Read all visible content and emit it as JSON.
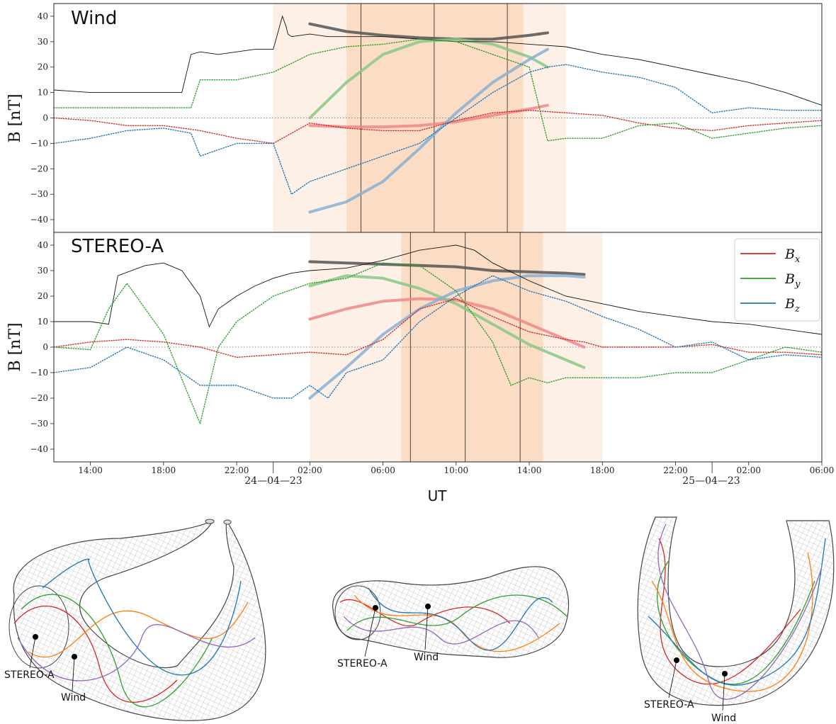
{
  "chart_data": [
    {
      "type": "line",
      "title": "Wind",
      "ylabel": "B [nT]",
      "ylim": [
        -45,
        45
      ],
      "yticks": [
        40,
        30,
        20,
        10,
        0,
        -10,
        -20,
        -30,
        -40
      ],
      "grid": false,
      "x_unit": "hours since 24-04-23 00:00 UT",
      "xlim": [
        -12,
        30
      ],
      "shaded_regions": [
        {
          "from": "24-04-23 00:00",
          "to": "24-04-23 04:00",
          "x": [
            0,
            4
          ],
          "shade": "light"
        },
        {
          "from": "24-04-23 04:00",
          "to": "24-04-23 13:40",
          "x": [
            4,
            13.67
          ],
          "shade": "dark"
        },
        {
          "from": "24-04-23 13:40",
          "to": "24-04-23 16:00",
          "x": [
            13.67,
            16
          ],
          "shade": "light"
        }
      ],
      "vertical_lines": [
        4.8,
        8.8,
        12.8
      ],
      "series": [
        {
          "name": "|B|",
          "color": "#111111",
          "x": [
            -12,
            -10,
            -8,
            -6,
            -5,
            -4.5,
            -4,
            -3,
            -2,
            -1,
            0,
            0.5,
            0.7,
            0.8,
            1,
            2,
            3,
            4,
            6,
            8,
            10,
            12,
            14,
            16,
            18,
            20,
            22,
            24,
            26,
            28,
            30
          ],
          "y": [
            11,
            10,
            10,
            10,
            10,
            25,
            26,
            25,
            26,
            27,
            27,
            40,
            36,
            33,
            32,
            33,
            32,
            32,
            32,
            31,
            30,
            30,
            29,
            28,
            25,
            23,
            20,
            17,
            14,
            10,
            5
          ]
        },
        {
          "name": "B_x",
          "color": "#d62728",
          "x": [
            -12,
            -10,
            -8,
            -6,
            -4,
            -2,
            0,
            2,
            4,
            6,
            8,
            10,
            12,
            14,
            16,
            18,
            20,
            22,
            24,
            26,
            28,
            30
          ],
          "y": [
            0,
            -1,
            -3,
            -3,
            -5,
            -8,
            -10,
            -2,
            -4,
            -5,
            -5,
            -1,
            2,
            3,
            2,
            1,
            -2,
            -4,
            -5,
            -3,
            -2,
            -1
          ]
        },
        {
          "name": "B_y",
          "color": "#2ca02c",
          "x": [
            -12,
            -10,
            -8,
            -6,
            -4.5,
            -4,
            -2,
            0,
            2,
            4,
            6,
            8,
            10,
            12,
            14,
            15,
            16,
            18,
            20,
            22,
            24,
            26,
            28,
            30
          ],
          "y": [
            4,
            4,
            4,
            4,
            4,
            15,
            15,
            18,
            25,
            28,
            29,
            31,
            30,
            25,
            20,
            -9,
            -8,
            -8,
            -3,
            -2,
            -8,
            -6,
            -4,
            -3
          ]
        },
        {
          "name": "B_z",
          "color": "#1f77b4",
          "x": [
            -12,
            -10,
            -8,
            -6,
            -4.5,
            -4,
            -2,
            0,
            1,
            2,
            4,
            6,
            8,
            10,
            12,
            14,
            15,
            16,
            18,
            20,
            22,
            24,
            26,
            28,
            30
          ],
          "y": [
            -10,
            -8,
            -5,
            -4,
            -6,
            -15,
            -10,
            -10,
            -30,
            -25,
            -20,
            -15,
            -10,
            0,
            10,
            18,
            20,
            21,
            18,
            16,
            12,
            2,
            4,
            3,
            3
          ]
        }
      ],
      "model_fits": [
        {
          "name": "|B| fit",
          "color": "#555555",
          "x": [
            2,
            4,
            6,
            8,
            10,
            12,
            14,
            15
          ],
          "y": [
            37,
            34,
            32.5,
            31.5,
            31,
            31,
            32.5,
            33.5
          ]
        },
        {
          "name": "B_x fit",
          "color": "#ee8888",
          "x": [
            2,
            4,
            6,
            8,
            10,
            12,
            14,
            15
          ],
          "y": [
            -3,
            -3.5,
            -3.5,
            -3,
            -1.5,
            1,
            3.5,
            5
          ]
        },
        {
          "name": "B_y fit",
          "color": "#88c888",
          "x": [
            2,
            4,
            6,
            8,
            10,
            12,
            14,
            15
          ],
          "y": [
            0,
            14,
            25,
            30,
            31,
            29,
            24,
            20
          ]
        },
        {
          "name": "B_z fit",
          "color": "#88b0d4",
          "x": [
            2,
            4,
            6,
            8,
            10,
            12,
            14,
            15
          ],
          "y": [
            -37,
            -33,
            -25,
            -12,
            2,
            14,
            23,
            27
          ]
        }
      ]
    },
    {
      "type": "line",
      "title": "STEREO-A",
      "ylabel": "B [nT]",
      "xlabel": "UT",
      "ylim": [
        -45,
        45
      ],
      "yticks": [
        40,
        30,
        20,
        10,
        0,
        -10,
        -20,
        -30,
        -40
      ],
      "grid": false,
      "x_unit": "hours since 24-04-23 00:00 UT",
      "xlim": [
        -12,
        30
      ],
      "xticks": [
        "14:00",
        "18:00",
        "22:00",
        "02:00",
        "06:00",
        "10:00",
        "14:00",
        "18:00",
        "22:00",
        "02:00",
        "06:00"
      ],
      "date_labels": [
        "24—04—23",
        "25—04—23"
      ],
      "legend": {
        "position": "top-right",
        "entries": [
          "B_x",
          "B_y",
          "B_z"
        ]
      },
      "shaded_regions": [
        {
          "from": "24-04-23 02:00",
          "to": "24-04-23 07:00",
          "x": [
            2,
            7
          ],
          "shade": "light"
        },
        {
          "from": "24-04-23 07:00",
          "to": "24-04-23 14:45",
          "x": [
            7,
            14.75
          ],
          "shade": "dark"
        },
        {
          "from": "24-04-23 14:45",
          "to": "24-04-23 18:00",
          "x": [
            14.75,
            18
          ],
          "shade": "light"
        }
      ],
      "vertical_lines": [
        7.5,
        10.5,
        13.5
      ],
      "series": [
        {
          "name": "|B|",
          "color": "#111111",
          "x": [
            -12,
            -10,
            -9,
            -8.5,
            -7,
            -6,
            -5,
            -4,
            -3.5,
            -3,
            -2,
            -1,
            0,
            1,
            2,
            4,
            6,
            8,
            10,
            11,
            12,
            14,
            16,
            18,
            20,
            22,
            24,
            26,
            28,
            30
          ],
          "y": [
            10,
            10,
            9,
            28,
            32,
            33,
            30,
            20,
            8,
            15,
            20,
            24,
            27,
            29,
            30,
            31,
            34,
            38,
            40,
            38,
            33,
            26,
            20,
            17,
            14,
            12,
            10,
            9,
            7,
            5
          ]
        },
        {
          "name": "B_x",
          "color": "#d62728",
          "x": [
            -12,
            -10,
            -8,
            -6,
            -4,
            -2,
            0,
            2,
            4,
            6,
            8,
            10,
            12,
            14,
            16,
            17,
            18,
            20,
            22,
            24,
            26,
            28,
            30
          ],
          "y": [
            0,
            2,
            3,
            2,
            0,
            -4,
            -3,
            -2,
            -3,
            3,
            15,
            19,
            12,
            6,
            3,
            2,
            0,
            0,
            0,
            1,
            -2,
            -2,
            -3
          ]
        },
        {
          "name": "B_y",
          "color": "#2ca02c",
          "x": [
            -12,
            -10,
            -9,
            -8,
            -6,
            -4,
            -3,
            -2,
            0,
            2,
            4,
            6,
            8,
            10,
            12,
            13,
            14,
            15,
            16,
            18,
            20,
            22,
            24,
            26,
            28,
            30
          ],
          "y": [
            0,
            -1,
            15,
            25,
            5,
            -30,
            0,
            10,
            20,
            25,
            27,
            33,
            32,
            22,
            2,
            -15,
            -12,
            -14,
            -12,
            -12,
            -12,
            -10,
            -10,
            -5,
            0,
            -2
          ]
        },
        {
          "name": "B_z",
          "color": "#1f77b4",
          "x": [
            -12,
            -10,
            -8,
            -6,
            -4,
            -2,
            0,
            1,
            2,
            3,
            4,
            6,
            8,
            10,
            12,
            14,
            16,
            18,
            20,
            22,
            24,
            26,
            28,
            30
          ],
          "y": [
            -10,
            -8,
            0,
            -5,
            -15,
            -15,
            -20,
            -20,
            -15,
            -20,
            -10,
            -5,
            10,
            20,
            28,
            22,
            18,
            12,
            7,
            0,
            2,
            -5,
            -3,
            -4
          ]
        }
      ],
      "model_fits": [
        {
          "name": "|B| fit",
          "color": "#555555",
          "x": [
            2,
            4,
            6,
            8,
            10,
            12,
            14,
            16,
            17
          ],
          "y": [
            33.5,
            33,
            32.5,
            32,
            31.5,
            30,
            29.5,
            29,
            28.5
          ]
        },
        {
          "name": "B_x fit",
          "color": "#ee8888",
          "x": [
            2,
            4,
            6,
            8,
            10,
            12,
            14,
            16,
            17
          ],
          "y": [
            11,
            15,
            18,
            19,
            18.5,
            15,
            9,
            3,
            0
          ]
        },
        {
          "name": "B_y fit",
          "color": "#88c888",
          "x": [
            2,
            4,
            6,
            8,
            10,
            12,
            14,
            16,
            17
          ],
          "y": [
            24,
            28,
            27,
            23,
            17,
            9,
            1,
            -5,
            -8
          ]
        },
        {
          "name": "B_z fit",
          "color": "#88b0d4",
          "x": [
            2,
            4,
            6,
            8,
            10,
            12,
            14,
            16,
            17
          ],
          "y": [
            -20,
            -8,
            5,
            15,
            22,
            26,
            28,
            28,
            27.5
          ]
        }
      ]
    }
  ],
  "flux_rope_views": [
    {
      "id": "view-1",
      "labels": [
        "STEREO-A",
        "Wind"
      ]
    },
    {
      "id": "view-2",
      "labels": [
        "STEREO-A",
        "Wind"
      ]
    },
    {
      "id": "view-3",
      "labels": [
        "STEREO-A",
        "Wind"
      ]
    }
  ],
  "legend_labels": [
    "B",
    "x",
    "B",
    "y",
    "B",
    "z"
  ],
  "colors": {
    "Bx": "#d62728",
    "By": "#2ca02c",
    "Bz": "#1f77b4",
    "B": "#111111",
    "shade_light": "#fdf0e6",
    "shade_dark": "#fbdcc4"
  }
}
